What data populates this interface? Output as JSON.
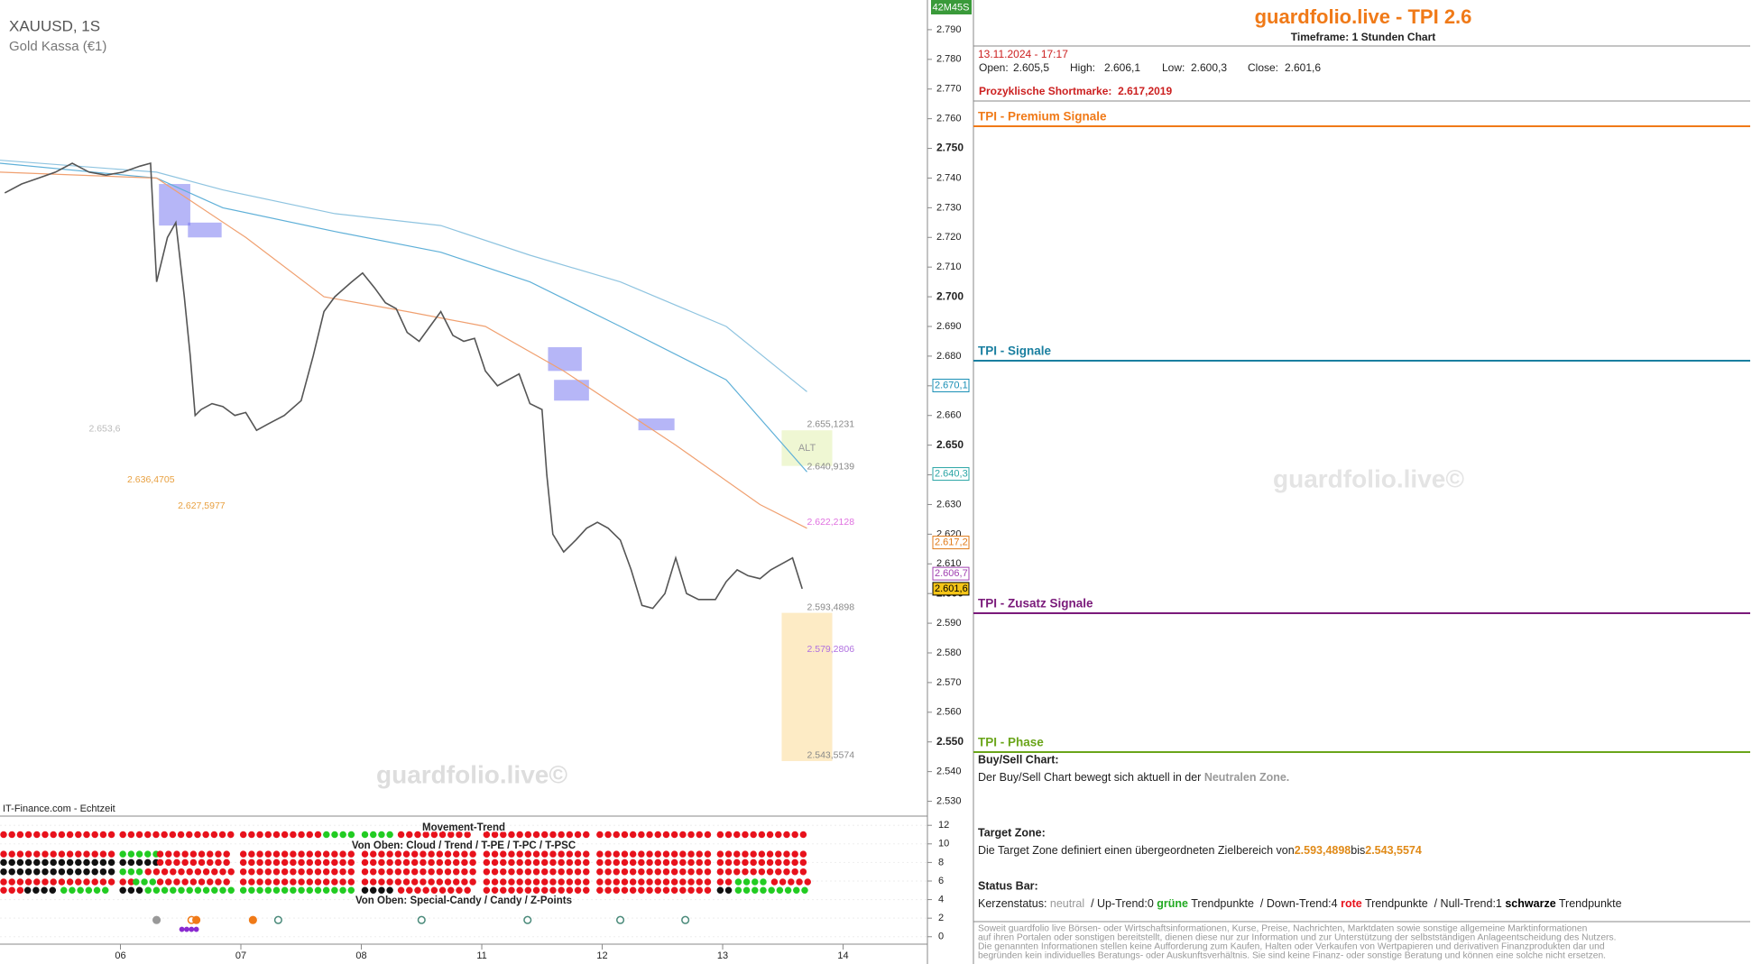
{
  "chart_data": {
    "type": "line",
    "title": "XAUUSD, 1S",
    "subtitle": "Gold Kassa (€1)",
    "source": "IT-Finance.com - Echtzeit",
    "watermark": "guardfolio.live©",
    "timer": "42M45S",
    "annotation": "ALT",
    "xlim": [
      0,
      7.7
    ],
    "xticks": [
      {
        "value": 1,
        "label": "06"
      },
      {
        "value": 2,
        "label": "07"
      },
      {
        "value": 3,
        "label": "08"
      },
      {
        "value": 4,
        "label": "11"
      },
      {
        "value": 5,
        "label": "12"
      },
      {
        "value": 6,
        "label": "13"
      },
      {
        "value": 7,
        "label": "14"
      }
    ],
    "ylim": [
      2525,
      2800
    ],
    "yticks": [
      {
        "value": 2530,
        "label": "2.530"
      },
      {
        "value": 2540,
        "label": "2.540"
      },
      {
        "value": 2550,
        "label": "2.550"
      },
      {
        "value": 2560,
        "label": "2.560"
      },
      {
        "value": 2570,
        "label": "2.570"
      },
      {
        "value": 2580,
        "label": "2.580"
      },
      {
        "value": 2590,
        "label": "2.590"
      },
      {
        "value": 2600,
        "label": "2.600"
      },
      {
        "value": 2610,
        "label": "2.610"
      },
      {
        "value": 2620,
        "label": "2.620"
      },
      {
        "value": 2630,
        "label": "2.630"
      },
      {
        "value": 2640,
        "label": "2.640"
      },
      {
        "value": 2650,
        "label": "2.650"
      },
      {
        "value": 2660,
        "label": "2.660"
      },
      {
        "value": 2670,
        "label": "2.670"
      },
      {
        "value": 2680,
        "label": "2.680"
      },
      {
        "value": 2690,
        "label": "2.690"
      },
      {
        "value": 2700,
        "label": "2.700"
      },
      {
        "value": 2710,
        "label": "2.710"
      },
      {
        "value": 2720,
        "label": "2.720"
      },
      {
        "value": 2730,
        "label": "2.730"
      },
      {
        "value": 2740,
        "label": "2.740"
      },
      {
        "value": 2750,
        "label": "2.750"
      },
      {
        "value": 2760,
        "label": "2.760"
      },
      {
        "value": 2770,
        "label": "2.770"
      },
      {
        "value": 2780,
        "label": "2.780"
      },
      {
        "value": 2790,
        "label": "2.790"
      }
    ],
    "series": [
      {
        "color": "#8fc4e0",
        "x": [
          0,
          1.3,
          1.85,
          2.78,
          3.66,
          4.4,
          5.15,
          6.03,
          6.7
        ],
        "values": [
          2746,
          2742,
          2736,
          2728,
          2724,
          2714,
          2705,
          2690,
          2668
        ]
      },
      {
        "color": "#5fb0d8",
        "x": [
          0,
          1.3,
          1.85,
          2.78,
          3.66,
          4.4,
          5.15,
          6.03,
          6.7
        ],
        "values": [
          2745,
          2740,
          2730,
          2722,
          2715,
          2705,
          2690,
          2672,
          2641
        ]
      },
      {
        "color": "#f0a070",
        "x": [
          0,
          1.3,
          2.04,
          2.69,
          3.38,
          4.03,
          4.68,
          5.61,
          6.31,
          6.7
        ],
        "values": [
          2742,
          2740,
          2720,
          2700,
          2695,
          2690,
          2675,
          2650,
          2630,
          2622
        ]
      },
      {
        "color": "#555555",
        "x": [
          0.04,
          0.18,
          0.32,
          0.46,
          0.6,
          0.74,
          0.88,
          1.02,
          1.16,
          1.25,
          1.3,
          1.39,
          1.46,
          1.53,
          1.58,
          1.62,
          1.67,
          1.76,
          1.85,
          1.95,
          2.04,
          2.13,
          2.22,
          2.36,
          2.5,
          2.6,
          2.69,
          2.78,
          2.92,
          3.01,
          3.11,
          3.2,
          3.29,
          3.38,
          3.48,
          3.57,
          3.66,
          3.76,
          3.85,
          3.94,
          4.03,
          4.13,
          4.22,
          4.31,
          4.4,
          4.5,
          4.54,
          4.59,
          4.68,
          4.78,
          4.87,
          4.96,
          5.05,
          5.15,
          5.24,
          5.33,
          5.42,
          5.52,
          5.61,
          5.7,
          5.8,
          5.94,
          6.03,
          6.12,
          6.21,
          6.31,
          6.4,
          6.49,
          6.58,
          6.66
        ],
        "values": [
          2735,
          2738,
          2740,
          2742,
          2745,
          2742,
          2741,
          2742,
          2744,
          2745,
          2705,
          2720,
          2725,
          2700,
          2680,
          2660,
          2662,
          2664,
          2663,
          2660,
          2661,
          2655,
          2657,
          2660,
          2665,
          2680,
          2695,
          2700,
          2705,
          2708,
          2703,
          2698,
          2696,
          2688,
          2685,
          2690,
          2695,
          2687,
          2685,
          2686,
          2675,
          2670,
          2672,
          2674,
          2664,
          2662,
          2640,
          2620,
          2614,
          2618,
          2622,
          2624,
          2622,
          2618,
          2608,
          2596,
          2595,
          2600,
          2612,
          2600,
          2598,
          2598,
          2604,
          2608,
          2606,
          2605,
          2608,
          2610,
          2612,
          2601.6
        ]
      }
    ],
    "zones": [
      {
        "x": [
          1.32,
          1.58
        ],
        "y": [
          2738,
          2724
        ],
        "color": "rgba(110,110,240,0.5)"
      },
      {
        "x": [
          1.56,
          1.84
        ],
        "y": [
          2725,
          2720
        ],
        "color": "rgba(110,110,240,0.5)"
      },
      {
        "x": [
          4.55,
          4.83
        ],
        "y": [
          2683,
          2675
        ],
        "color": "rgba(110,110,240,0.5)"
      },
      {
        "x": [
          4.6,
          4.89
        ],
        "y": [
          2672,
          2665
        ],
        "color": "rgba(110,110,240,0.5)"
      },
      {
        "x": [
          5.3,
          5.6
        ],
        "y": [
          2659,
          2655
        ],
        "color": "rgba(110,110,240,0.5)"
      },
      {
        "x": [
          6.49,
          6.91
        ],
        "y": [
          2655,
          2643
        ],
        "color": "rgba(235,245,200,0.8)"
      }
    ],
    "target_zone": {
      "x": [
        6.49,
        6.91
      ],
      "color": "#fdebc5"
    },
    "levels": [
      {
        "label": "2.655,1231",
        "value": 2655.1231,
        "x": 6.7,
        "color": "#888888"
      },
      {
        "label": "2.640,9139",
        "value": 2640.9139,
        "x": 6.7,
        "color": "#888888"
      },
      {
        "label": "2.622,2128",
        "value": 2622.2128,
        "x": 6.7,
        "color": "#e070e0"
      },
      {
        "label": "2.593,4898",
        "value": 2593.4898,
        "x": 6.7,
        "color": "#888888"
      },
      {
        "label": "2.579,2806",
        "value": 2579.2806,
        "x": 6.7,
        "color": "#b070e0"
      },
      {
        "label": "2.543,5574",
        "value": 2543.5574,
        "x": 6.7,
        "color": "#888888"
      },
      {
        "label": "2.653,6",
        "value": 2653.6,
        "x": 1.0,
        "color": "#bbbbbb"
      },
      {
        "label": "2.636,4705",
        "value": 2636.4705,
        "x": 1.45,
        "color": "#e8a040"
      },
      {
        "label": "2.627,5977",
        "value": 2627.5977,
        "x": 1.87,
        "color": "#e8a040"
      }
    ],
    "price_tags": [
      {
        "label": "2.670,1",
        "value": 2670.1,
        "color": "#1a8fb5",
        "fill": "#ffffff"
      },
      {
        "label": "2.640,3",
        "value": 2640.3,
        "color": "#2aa5a5",
        "fill": "#ffffff"
      },
      {
        "label": "2.617,2",
        "value": 2617.2,
        "color": "#e07a18",
        "fill": "#ffffff"
      },
      {
        "label": "2.606,7",
        "value": 2606.7,
        "color": "#a040b0",
        "fill": "#ffffff"
      },
      {
        "label": "2.601,6",
        "value": 2601.6,
        "color": "#000000",
        "fill": "#f5c518"
      }
    ]
  },
  "indicator": {
    "title": "Movement-Trend",
    "subtitle_top": "Von Oben: Cloud / Trend / T-PE / T-PC / T-PSC",
    "subtitle_bottom": "Von Oben: Special-Candy / Candy / Z-Points",
    "ylim": [
      -0.8,
      12.7
    ],
    "yticks": [
      0,
      2,
      4,
      6,
      8,
      10,
      12
    ],
    "colors": {
      "r": "#e8121c",
      "g": "#22cc22",
      "k": "#111111"
    },
    "rows": [
      {
        "y": 11,
        "segments": [
          [
            0,
            0.94,
            "r"
          ],
          [
            0.99,
            1.93,
            "r"
          ],
          [
            1.99,
            2.68,
            "r"
          ],
          [
            2.68,
            2.95,
            "g"
          ],
          [
            3.0,
            3.3,
            "g"
          ],
          [
            3.3,
            3.95,
            "r"
          ],
          [
            4.01,
            4.9,
            "r"
          ],
          [
            4.95,
            5.9,
            "r"
          ],
          [
            5.95,
            6.73,
            "r"
          ]
        ]
      },
      {
        "y": 8.9,
        "segments": [
          [
            0,
            0.94,
            "r"
          ],
          [
            0.99,
            1.3,
            "g"
          ],
          [
            1.3,
            1.93,
            "r"
          ],
          [
            1.99,
            2.95,
            "r"
          ],
          [
            3.0,
            3.95,
            "r"
          ],
          [
            4.01,
            4.9,
            "r"
          ],
          [
            4.95,
            5.9,
            "r"
          ],
          [
            5.95,
            6.73,
            "r"
          ]
        ]
      },
      {
        "y": 8,
        "segments": [
          [
            0,
            0.94,
            "k"
          ],
          [
            0.99,
            1.3,
            "k"
          ],
          [
            1.3,
            1.93,
            "r"
          ],
          [
            1.99,
            2.95,
            "r"
          ],
          [
            3.0,
            3.95,
            "r"
          ],
          [
            4.01,
            4.9,
            "r"
          ],
          [
            4.95,
            5.9,
            "r"
          ],
          [
            5.95,
            6.73,
            "r"
          ]
        ]
      },
      {
        "y": 7,
        "segments": [
          [
            0,
            0.94,
            "k"
          ],
          [
            0.99,
            1.2,
            "g"
          ],
          [
            1.2,
            1.93,
            "r"
          ],
          [
            1.99,
            2.95,
            "r"
          ],
          [
            3.0,
            3.95,
            "r"
          ],
          [
            4.01,
            4.9,
            "r"
          ],
          [
            4.95,
            5.9,
            "r"
          ],
          [
            5.95,
            6.73,
            "r"
          ]
        ]
      },
      {
        "y": 5.9,
        "segments": [
          [
            0,
            0.94,
            "r"
          ],
          [
            0.99,
            1.1,
            "r"
          ],
          [
            1.1,
            1.3,
            "g"
          ],
          [
            1.3,
            1.93,
            "r"
          ],
          [
            1.99,
            2.95,
            "r"
          ],
          [
            3.0,
            3.95,
            "r"
          ],
          [
            4.01,
            4.9,
            "r"
          ],
          [
            4.95,
            5.9,
            "r"
          ],
          [
            5.95,
            6.1,
            "r"
          ],
          [
            6.1,
            6.4,
            "g"
          ],
          [
            6.4,
            6.73,
            "r"
          ]
        ]
      },
      {
        "y": 5,
        "segments": [
          [
            0,
            0.2,
            "r"
          ],
          [
            0.2,
            0.5,
            "k"
          ],
          [
            0.5,
            0.94,
            "g"
          ],
          [
            0.99,
            1.2,
            "k"
          ],
          [
            1.2,
            1.93,
            "g"
          ],
          [
            1.99,
            2.95,
            "g"
          ],
          [
            3.0,
            3.3,
            "k"
          ],
          [
            3.3,
            3.95,
            "r"
          ],
          [
            4.01,
            4.9,
            "r"
          ],
          [
            4.95,
            5.9,
            "r"
          ],
          [
            5.95,
            6.1,
            "k"
          ],
          [
            6.1,
            6.73,
            "g"
          ]
        ]
      }
    ],
    "points": [
      {
        "x": 1.3,
        "y": 1.8,
        "color": "#999999",
        "filled": true
      },
      {
        "x": 1.59,
        "y": 1.8,
        "color": "#f07a18",
        "filled": false
      },
      {
        "x": 1.63,
        "y": 1.8,
        "color": "#f07a18",
        "filled": true
      },
      {
        "x": 2.1,
        "y": 1.8,
        "color": "#f07a18",
        "filled": true
      },
      {
        "x": 2.31,
        "y": 1.8,
        "color": "#4a8a7a",
        "filled": false
      },
      {
        "x": 3.5,
        "y": 1.8,
        "color": "#4a8a7a",
        "filled": false
      },
      {
        "x": 4.38,
        "y": 1.8,
        "color": "#4a8a7a",
        "filled": false
      },
      {
        "x": 5.15,
        "y": 1.8,
        "color": "#4a8a7a",
        "filled": false
      },
      {
        "x": 5.69,
        "y": 1.8,
        "color": "#4a8a7a",
        "filled": false
      },
      {
        "x": 1.51,
        "y": 0.8,
        "color": "#8a2ad0",
        "filled": true
      },
      {
        "x": 1.55,
        "y": 0.8,
        "color": "#8a2ad0",
        "filled": true
      },
      {
        "x": 1.59,
        "y": 0.8,
        "color": "#8a2ad0",
        "filled": true
      },
      {
        "x": 1.63,
        "y": 0.8,
        "color": "#8a2ad0",
        "filled": true
      }
    ]
  },
  "panel": {
    "title": "guardfolio.live - TPI 2.6",
    "timeframe_label": "Timeframe:",
    "timeframe": "1 Stunden Chart",
    "datetime": "13.11.2024 - 17:17",
    "ohlc": [
      {
        "label": "Open:",
        "value": "2.605,5"
      },
      {
        "label": "High:",
        "value": "2.606,1"
      },
      {
        "label": "Low:",
        "value": "2.600,3"
      },
      {
        "label": "Close:",
        "value": "2.601,6"
      }
    ],
    "short_label": "Prozyklische Shortmarke:",
    "short_value": "2.617,2019",
    "sections": [
      {
        "label": "TPI - Premium Signale",
        "color": "#f07a18"
      },
      {
        "label": "TPI - Signale",
        "color": "#1a7fa0"
      },
      {
        "label": "TPI - Zusatz Signale",
        "color": "#7a1a7a"
      },
      {
        "label": "TPI - Phase",
        "color": "#6aa51a"
      }
    ],
    "buysell": {
      "heading": "Buy/Sell Chart:",
      "text": "Der Buy/Sell Chart bewegt sich aktuell in der ",
      "zone": "Neutralen Zone."
    },
    "target": {
      "heading": "Target Zone:",
      "text": "Die Target Zone definiert einen übergeordneten Zielbereich von",
      "from": "2.593,4898",
      "joiner": "bis",
      "to": "2.543,5574"
    },
    "status": {
      "heading": "Status Bar:",
      "parts": [
        {
          "text": "Kerzenstatus: ",
          "color": "#222222",
          "bold": false
        },
        {
          "text": "neutral",
          "color": "#999999",
          "bold": false
        },
        {
          "text": "  / Up-Trend:0 ",
          "color": "#222222",
          "bold": false
        },
        {
          "text": "grüne",
          "color": "#22aa22",
          "bold": true
        },
        {
          "text": " Trendpunkte  / Down-Trend:4 ",
          "color": "#222222",
          "bold": false
        },
        {
          "text": "rote",
          "color": "#e8121c",
          "bold": true
        },
        {
          "text": " Trendpunkte  / Null-Trend:1 ",
          "color": "#222222",
          "bold": false
        },
        {
          "text": "schwarze",
          "color": "#000000",
          "bold": true
        },
        {
          "text": " Trendpunkte",
          "color": "#222222",
          "bold": false
        }
      ]
    },
    "disclaimer": [
      "Soweit guardfolio live Börsen- oder Wirtschaftsinformationen, Kurse, Preise, Nachrichten, Marktdaten sowie sonstige allgemeine Marktinformationen",
      "auf ihren Portalen oder sonstigen bereitstellt, dienen diese nur zur Information und zur Unterstützung der selbstständigen Anlageentscheidung des Nutzers.",
      "Die genannten Informationen stellen keine Aufforderung zum Kaufen, Halten oder Verkaufen von Wertpapieren und derivativen Finanzprodukten dar und",
      "begründen kein individuelles Beratungs- oder Auskunftsverhältnis. Sie sind keine Finanz- oder sonstige Beratung und können eine solche nicht ersetzen."
    ],
    "watermark": "guardfolio.live©"
  }
}
